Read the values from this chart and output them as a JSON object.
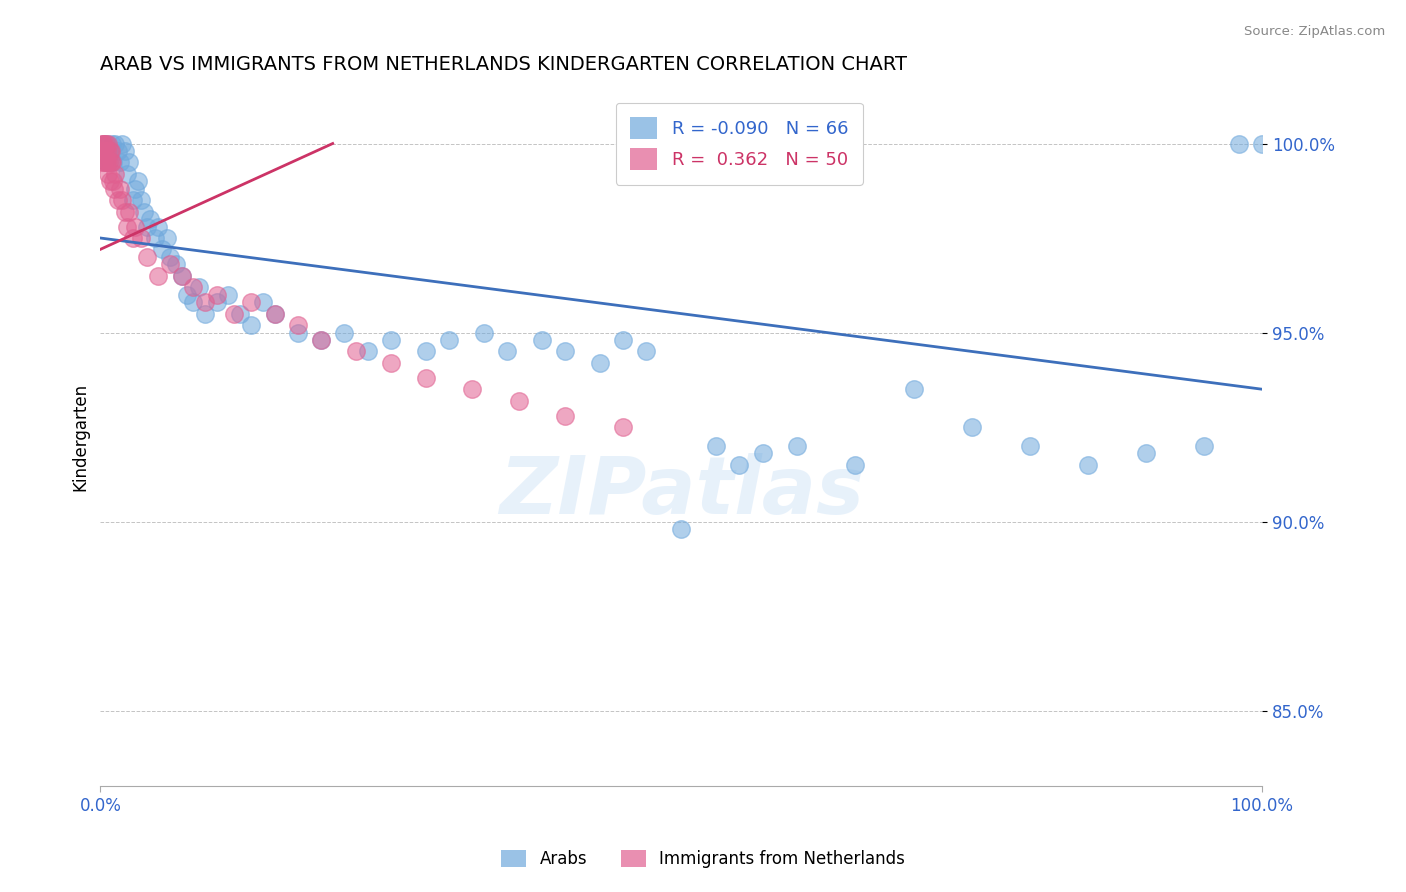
{
  "title": "ARAB VS IMMIGRANTS FROM NETHERLANDS KINDERGARTEN CORRELATION CHART",
  "source_text": "Source: ZipAtlas.com",
  "ylabel": "Kindergarten",
  "xlim": [
    0,
    100
  ],
  "ylim": [
    83,
    101.5
  ],
  "yticks": [
    85,
    90,
    95,
    100
  ],
  "ytick_labels": [
    "85.0%",
    "90.0%",
    "95.0%",
    "100.0%"
  ],
  "xtick_labels": [
    "0.0%",
    "100.0%"
  ],
  "watermark": "ZIPatlas",
  "legend_blue_label": "Arabs",
  "legend_pink_label": "Immigrants from Netherlands",
  "R_blue": -0.09,
  "N_blue": 66,
  "R_pink": 0.362,
  "N_pink": 50,
  "blue_color": "#6fa8dc",
  "pink_color": "#e06090",
  "trend_blue_color": "#3d6fbb",
  "trend_pink_color": "#cc3366",
  "blue_points_x": [
    0.2,
    0.3,
    0.5,
    0.6,
    0.8,
    1.0,
    1.1,
    1.3,
    1.5,
    1.7,
    1.9,
    2.1,
    2.3,
    2.5,
    2.8,
    3.0,
    3.2,
    3.5,
    3.8,
    4.0,
    4.3,
    4.7,
    5.0,
    5.3,
    5.7,
    6.0,
    6.5,
    7.0,
    7.5,
    8.0,
    8.5,
    9.0,
    10.0,
    11.0,
    12.0,
    13.0,
    14.0,
    15.0,
    17.0,
    19.0,
    21.0,
    23.0,
    25.0,
    28.0,
    30.0,
    33.0,
    35.0,
    38.0,
    40.0,
    43.0,
    45.0,
    47.0,
    50.0,
    53.0,
    55.0,
    57.0,
    60.0,
    65.0,
    70.0,
    75.0,
    80.0,
    85.0,
    90.0,
    95.0,
    98.0,
    100.0
  ],
  "blue_points_y": [
    99.8,
    100.0,
    99.5,
    100.0,
    99.8,
    100.0,
    99.5,
    100.0,
    99.8,
    99.5,
    100.0,
    99.8,
    99.2,
    99.5,
    98.5,
    98.8,
    99.0,
    98.5,
    98.2,
    97.8,
    98.0,
    97.5,
    97.8,
    97.2,
    97.5,
    97.0,
    96.8,
    96.5,
    96.0,
    95.8,
    96.2,
    95.5,
    95.8,
    96.0,
    95.5,
    95.2,
    95.8,
    95.5,
    95.0,
    94.8,
    95.0,
    94.5,
    94.8,
    94.5,
    94.8,
    95.0,
    94.5,
    94.8,
    94.5,
    94.2,
    94.8,
    94.5,
    89.8,
    92.0,
    91.5,
    91.8,
    92.0,
    91.5,
    93.5,
    92.5,
    92.0,
    91.5,
    91.8,
    92.0,
    100.0,
    100.0
  ],
  "pink_points_x": [
    0.1,
    0.15,
    0.2,
    0.25,
    0.3,
    0.35,
    0.4,
    0.45,
    0.5,
    0.55,
    0.6,
    0.65,
    0.7,
    0.75,
    0.8,
    0.85,
    0.9,
    0.95,
    1.0,
    1.1,
    1.2,
    1.3,
    1.5,
    1.7,
    1.9,
    2.1,
    2.3,
    2.5,
    2.8,
    3.0,
    3.5,
    4.0,
    5.0,
    6.0,
    7.0,
    8.0,
    9.0,
    10.0,
    11.5,
    13.0,
    15.0,
    17.0,
    19.0,
    22.0,
    25.0,
    28.0,
    32.0,
    36.0,
    40.0,
    45.0
  ],
  "pink_points_y": [
    99.5,
    100.0,
    99.8,
    100.0,
    99.5,
    100.0,
    99.8,
    99.5,
    100.0,
    99.8,
    99.5,
    100.0,
    99.2,
    99.5,
    99.8,
    99.0,
    99.5,
    99.8,
    99.5,
    99.0,
    98.8,
    99.2,
    98.5,
    98.8,
    98.5,
    98.2,
    97.8,
    98.2,
    97.5,
    97.8,
    97.5,
    97.0,
    96.5,
    96.8,
    96.5,
    96.2,
    95.8,
    96.0,
    95.5,
    95.8,
    95.5,
    95.2,
    94.8,
    94.5,
    94.2,
    93.8,
    93.5,
    93.2,
    92.8,
    92.5
  ],
  "trend_blue_start_y": 97.5,
  "trend_blue_end_y": 93.5,
  "trend_pink_start_y": 97.2,
  "trend_pink_end_y": 100.0,
  "trend_pink_start_x": 0.0,
  "trend_pink_end_x": 20.0
}
